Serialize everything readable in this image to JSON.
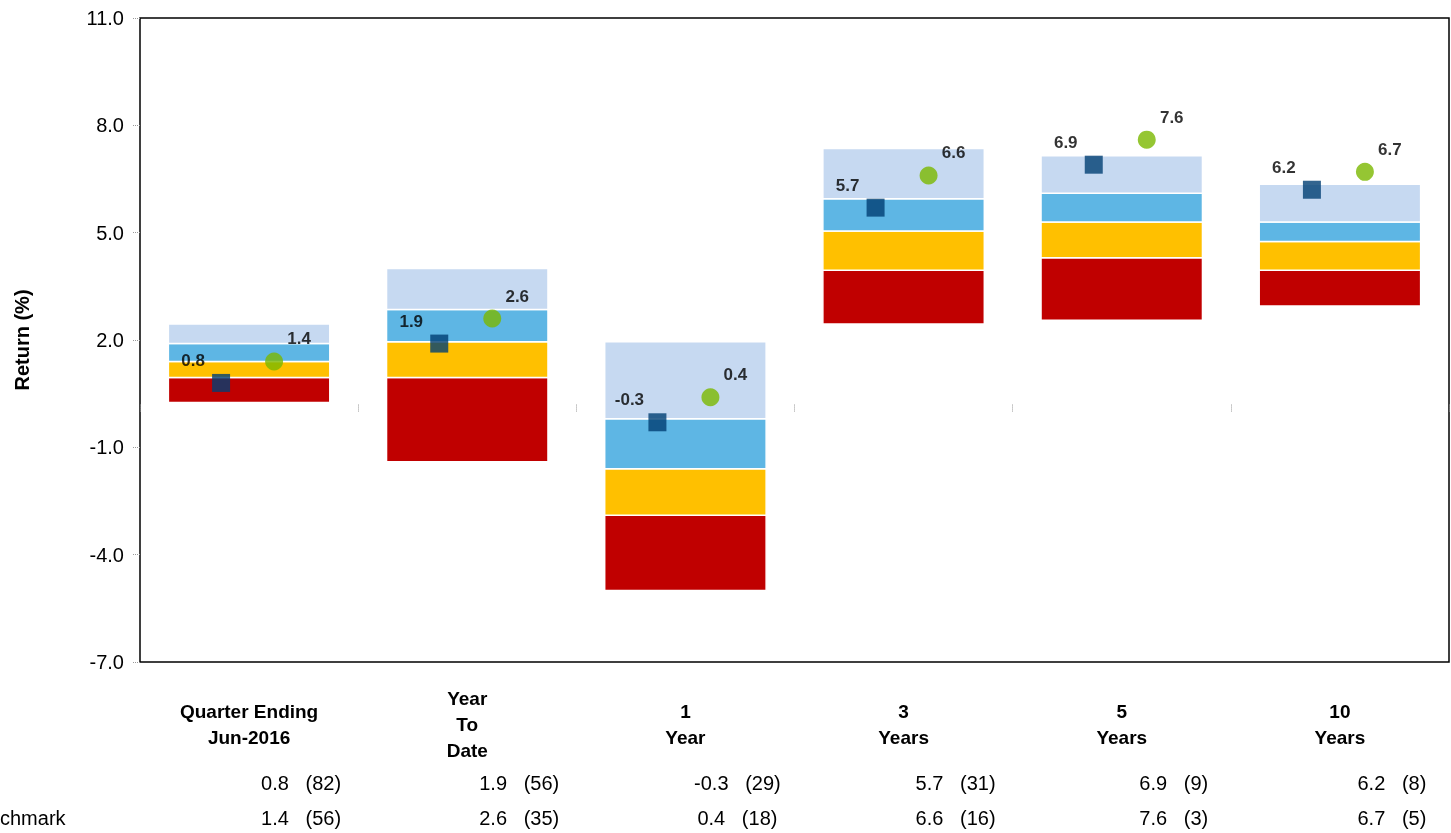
{
  "chart_data": {
    "type": "bar",
    "ylabel": "Return (%)",
    "categories": [
      "Quarter Ending\nJun-2016",
      "Year\nTo\nDate",
      "1\nYear",
      "3\nYears",
      "5\nYears",
      "10\nYears"
    ],
    "series": [
      {
        "color": "#c00000",
        "base": [
          0.25,
          -1.4,
          -5.0,
          2.45,
          2.55,
          2.95
        ],
        "values": [
          0.7,
          2.35,
          2.1,
          1.5,
          1.75,
          1.0
        ]
      },
      {
        "color": "#ffc000",
        "base": [
          0.95,
          0.95,
          -2.9,
          3.95,
          4.3,
          3.95
        ],
        "values": [
          0.45,
          1.0,
          1.3,
          1.1,
          1.0,
          0.8
        ]
      },
      {
        "color": "#5eb6e4",
        "base": [
          1.4,
          1.95,
          -1.6,
          5.05,
          5.3,
          4.75
        ],
        "values": [
          0.5,
          0.9,
          1.4,
          0.9,
          0.8,
          0.55
        ]
      },
      {
        "color": "#c6d9f1",
        "base": [
          1.9,
          2.85,
          -0.2,
          5.95,
          6.1,
          5.3
        ],
        "values": [
          0.55,
          1.15,
          2.15,
          1.4,
          1.05,
          1.05
        ]
      },
      {
        "type": "scatter",
        "marker": "square",
        "color": "#003f73",
        "values": [
          0.8,
          1.9,
          -0.3,
          5.7,
          6.9,
          6.2
        ],
        "value_labels": [
          "0.8",
          "1.9",
          "-0.3",
          "5.7",
          "6.9",
          "6.2"
        ]
      },
      {
        "type": "scatter",
        "name": "chmark",
        "marker": "circle",
        "color": "#7ab800",
        "values": [
          1.4,
          2.6,
          0.4,
          6.6,
          7.6,
          6.7
        ],
        "value_labels": [
          "1.4",
          "2.6",
          "0.4",
          "6.6",
          "7.6",
          "6.7"
        ]
      }
    ],
    "annotations": [
      "0.8   (82)",
      "1.9   (56)",
      "-0.3   (29)",
      "5.7   (31)",
      "6.9   (9)",
      "6.2   (8)",
      "1.4   (56)",
      "2.6   (35)",
      "0.4   (18)",
      "6.6   (16)",
      "7.6   (3)",
      "6.7   (5)"
    ],
    "ylim": [
      -7,
      11
    ],
    "yticks": [
      {
        "value": -7,
        "label": "-7.0"
      },
      {
        "value": -4,
        "label": "-4.0"
      },
      {
        "value": -1,
        "label": "-1.0"
      },
      {
        "value": 2,
        "label": "2.0"
      },
      {
        "value": 5,
        "label": "5.0"
      },
      {
        "value": 8,
        "label": "8.0"
      },
      {
        "value": 11,
        "label": "11.0"
      }
    ],
    "grid": false,
    "legend": false
  }
}
